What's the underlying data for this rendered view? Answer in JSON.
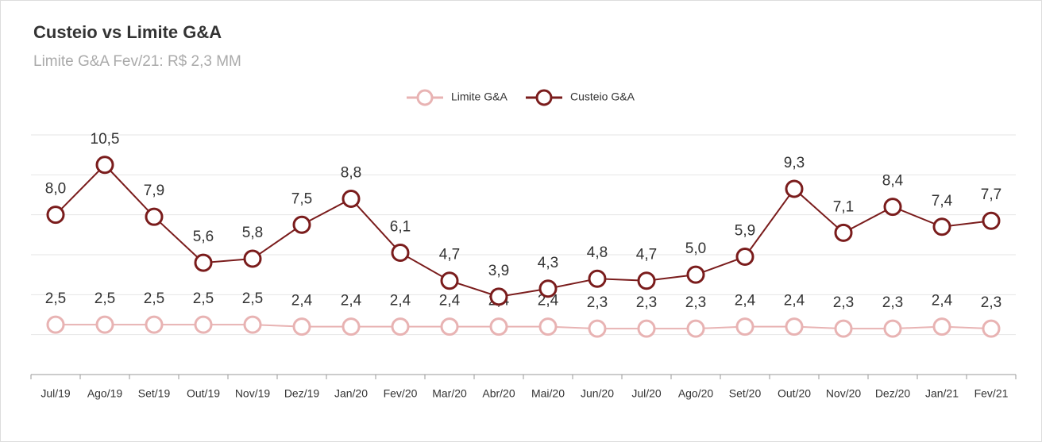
{
  "chart_data": {
    "type": "line",
    "title": "Custeio vs Limite G&A",
    "subtitle": "Limite G&A Fev/21: R$ 2,3 MM",
    "categories": [
      "Jul/19",
      "Ago/19",
      "Set/19",
      "Out/19",
      "Nov/19",
      "Dez/19",
      "Jan/20",
      "Fev/20",
      "Mar/20",
      "Abr/20",
      "Mai/20",
      "Jun/20",
      "Jul/20",
      "Ago/20",
      "Set/20",
      "Out/20",
      "Nov/20",
      "Dez/20",
      "Jan/21",
      "Fev/21"
    ],
    "series": [
      {
        "name": "Limite G&A",
        "color": "#e8b3b3",
        "values": [
          2.5,
          2.5,
          2.5,
          2.5,
          2.5,
          2.4,
          2.4,
          2.4,
          2.4,
          2.4,
          2.4,
          2.3,
          2.3,
          2.3,
          2.4,
          2.4,
          2.3,
          2.3,
          2.4,
          2.3
        ],
        "value_labels": [
          "2,5",
          "2,5",
          "2,5",
          "2,5",
          "2,5",
          "2,4",
          "2,4",
          "2,4",
          "2,4",
          "2,4",
          "2,4",
          "2,3",
          "2,3",
          "2,3",
          "2,4",
          "2,4",
          "2,3",
          "2,3",
          "2,4",
          "2,3"
        ]
      },
      {
        "name": "Custeio G&A",
        "color": "#7a1c1c",
        "values": [
          8.0,
          10.5,
          7.9,
          5.6,
          5.8,
          7.5,
          8.8,
          6.1,
          4.7,
          3.9,
          4.3,
          4.8,
          4.7,
          5.0,
          5.9,
          9.3,
          7.1,
          8.4,
          7.4,
          7.7
        ],
        "value_labels": [
          "8,0",
          "10,5",
          "7,9",
          "5,6",
          "5,8",
          "7,5",
          "8,8",
          "6,1",
          "4,7",
          "3,9",
          "4,3",
          "4,8",
          "4,7",
          "5,0",
          "5,9",
          "9,3",
          "7,1",
          "8,4",
          "7,4",
          "7,7"
        ]
      }
    ],
    "ylim": [
      0,
      12
    ],
    "yticks": [
      0,
      2,
      4,
      6,
      8,
      10,
      12
    ],
    "grid": true,
    "legend": "top"
  }
}
